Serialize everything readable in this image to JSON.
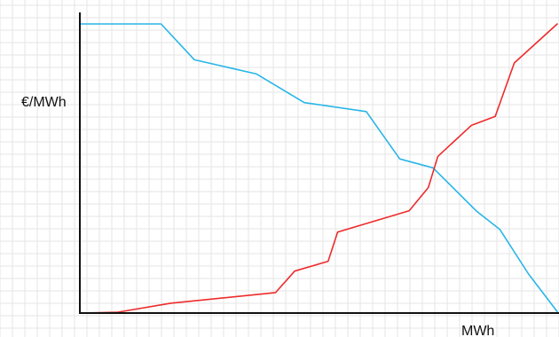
{
  "chart_data": {
    "type": "line",
    "title": "",
    "xlabel": "MWh",
    "ylabel": "€/MWh",
    "xlim": [
      0,
      100
    ],
    "ylim": [
      0,
      100
    ],
    "grid": true,
    "series": [
      {
        "color": "#29b6e6",
        "points": [
          [
            0,
            100
          ],
          [
            17,
            100
          ],
          [
            24,
            87.6
          ],
          [
            37,
            82.7
          ],
          [
            47,
            72.8
          ],
          [
            60,
            69.7
          ],
          [
            67,
            53.3
          ],
          [
            74,
            50.2
          ],
          [
            83,
            35.4
          ],
          [
            88,
            28.9
          ],
          [
            94,
            13.5
          ],
          [
            100,
            0.5
          ]
        ]
      },
      {
        "color": "#ee2b2b",
        "points": [
          [
            0,
            0
          ],
          [
            8,
            0.3
          ],
          [
            19,
            3.4
          ],
          [
            41,
            7.1
          ],
          [
            45,
            14.5
          ],
          [
            52,
            17.9
          ],
          [
            54,
            28
          ],
          [
            69,
            35.4
          ],
          [
            73,
            43.4
          ],
          [
            75,
            54.2
          ],
          [
            82,
            64.9
          ],
          [
            87,
            68
          ],
          [
            91,
            86.5
          ],
          [
            100,
            100
          ]
        ]
      }
    ]
  }
}
